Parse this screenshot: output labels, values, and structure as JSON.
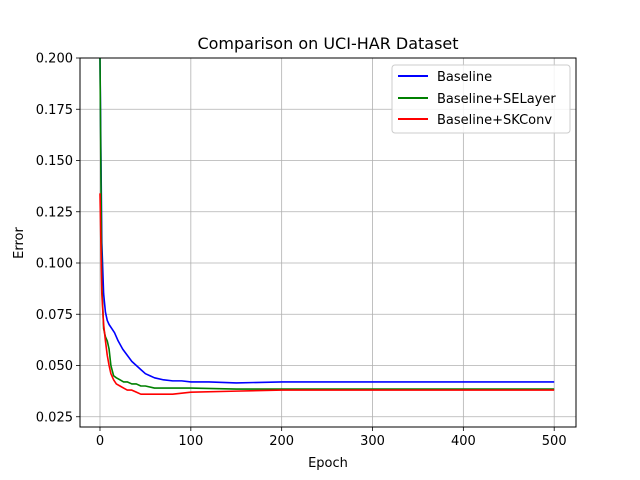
{
  "chart_data": {
    "type": "line",
    "title": "Comparison on UCI-HAR Dataset",
    "xlabel": "Epoch",
    "ylabel": "Error",
    "xlim": [
      -22,
      524
    ],
    "ylim": [
      0.02,
      0.2
    ],
    "xticks": [
      0,
      100,
      200,
      300,
      400,
      500
    ],
    "xtick_labels": [
      "0",
      "100",
      "200",
      "300",
      "400",
      "500"
    ],
    "yticks": [
      0.025,
      0.05,
      0.075,
      0.1,
      0.125,
      0.15,
      0.175,
      0.2
    ],
    "ytick_labels": [
      "0.025",
      "0.050",
      "0.075",
      "0.100",
      "0.125",
      "0.150",
      "0.175",
      "0.200"
    ],
    "grid": true,
    "legend_position": "top-right",
    "series": [
      {
        "name": "Baseline",
        "color": "#0000ff",
        "x": [
          0,
          2,
          4,
          6,
          8,
          10,
          13,
          16,
          20,
          25,
          30,
          35,
          40,
          45,
          50,
          55,
          60,
          70,
          80,
          90,
          100,
          120,
          150,
          200,
          250,
          300,
          350,
          400,
          450,
          500
        ],
        "y": [
          0.2,
          0.11,
          0.085,
          0.076,
          0.072,
          0.07,
          0.068,
          0.066,
          0.062,
          0.058,
          0.055,
          0.052,
          0.05,
          0.048,
          0.046,
          0.045,
          0.044,
          0.043,
          0.0425,
          0.0425,
          0.042,
          0.042,
          0.0415,
          0.042,
          0.042,
          0.042,
          0.042,
          0.042,
          0.042,
          0.042
        ]
      },
      {
        "name": "Baseline+SELayer",
        "color": "#008000",
        "x": [
          0,
          2,
          4,
          6,
          8,
          10,
          12,
          15,
          18,
          22,
          26,
          30,
          35,
          40,
          45,
          50,
          60,
          70,
          80,
          100,
          150,
          200,
          250,
          300,
          350,
          400,
          450,
          500
        ],
        "y": [
          0.2,
          0.09,
          0.068,
          0.064,
          0.062,
          0.058,
          0.05,
          0.045,
          0.044,
          0.043,
          0.042,
          0.042,
          0.041,
          0.041,
          0.04,
          0.04,
          0.039,
          0.039,
          0.039,
          0.039,
          0.0385,
          0.0385,
          0.0385,
          0.0385,
          0.0385,
          0.0385,
          0.0385,
          0.0385
        ]
      },
      {
        "name": "Baseline+SKConv",
        "color": "#ff0000",
        "x": [
          0,
          2,
          4,
          6,
          8,
          10,
          12,
          15,
          18,
          22,
          26,
          30,
          35,
          40,
          45,
          50,
          60,
          70,
          80,
          90,
          100,
          150,
          200,
          250,
          300,
          350,
          400,
          450,
          500
        ],
        "y": [
          0.134,
          0.085,
          0.07,
          0.062,
          0.055,
          0.05,
          0.046,
          0.043,
          0.041,
          0.04,
          0.039,
          0.038,
          0.038,
          0.037,
          0.036,
          0.036,
          0.036,
          0.036,
          0.036,
          0.0365,
          0.037,
          0.0375,
          0.038,
          0.038,
          0.038,
          0.038,
          0.038,
          0.038,
          0.038
        ]
      }
    ]
  }
}
